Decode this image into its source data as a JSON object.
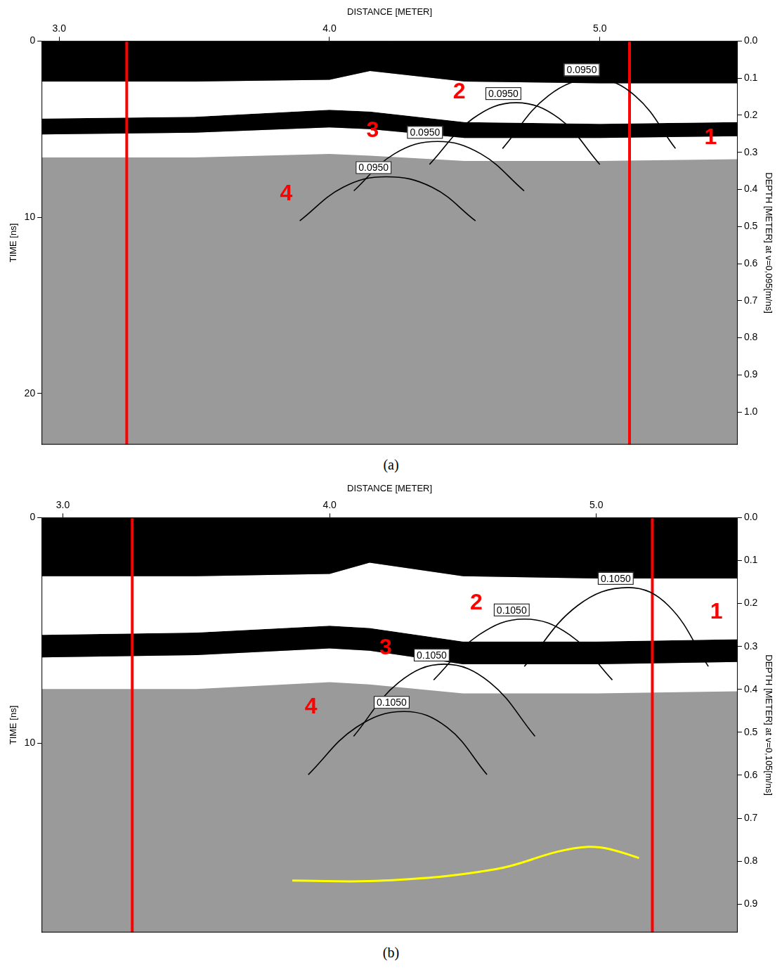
{
  "chart_data": [
    {
      "type": "line",
      "caption": "(a)",
      "x_label": "DISTANCE [METER]",
      "y_label": "TIME [ns]",
      "y2_label": "DEPTH [METER] at v=0,095[m/ns]",
      "xlim": [
        2.935,
        5.51
      ],
      "xticks": [
        {
          "value": 3,
          "label": "3.0"
        },
        {
          "value": 4,
          "label": "4.0"
        },
        {
          "value": 5,
          "label": "5.0"
        }
      ],
      "ylim": [
        0,
        22.9
      ],
      "yticks": [
        0,
        10,
        20
      ],
      "y2lim": [
        0,
        1.088
      ],
      "y2ticks": [
        {
          "value": 0,
          "label": "0.0"
        },
        0.1,
        0.2,
        0.3,
        0.4,
        0.5,
        0.6,
        0.7,
        0.8,
        0.9,
        {
          "value": 1,
          "label": "1.0"
        }
      ],
      "grid": false,
      "bands": [
        {
          "color": "#000000",
          "x": [
            2.935,
            3.5,
            4.0,
            4.15,
            4.5,
            5.0,
            5.51
          ],
          "top": [
            0,
            0,
            0,
            0,
            0,
            0,
            0
          ],
          "bottom": [
            2.3,
            2.3,
            2.2,
            1.7,
            2.3,
            2.4,
            2.4
          ]
        },
        {
          "color": "#ffffff",
          "x": [
            2.935,
            3.5,
            4.0,
            4.15,
            4.5,
            5.0,
            5.51
          ],
          "top": [
            2.3,
            2.3,
            2.2,
            1.7,
            2.3,
            2.4,
            2.4
          ],
          "bottom": [
            4.4,
            4.3,
            3.9,
            4.0,
            4.6,
            4.7,
            4.6
          ]
        },
        {
          "color": "#000000",
          "x": [
            2.935,
            3.5,
            4.0,
            4.15,
            4.5,
            5.0,
            5.51
          ],
          "top": [
            4.4,
            4.3,
            3.9,
            4.0,
            4.6,
            4.7,
            4.6
          ],
          "bottom": [
            5.3,
            5.2,
            4.9,
            5.0,
            5.5,
            5.5,
            5.4
          ]
        },
        {
          "color": "#ffffff",
          "x": [
            2.935,
            3.5,
            4.0,
            4.15,
            4.5,
            5.0,
            5.51
          ],
          "top": [
            5.3,
            5.2,
            4.9,
            5.0,
            5.5,
            5.5,
            5.4
          ],
          "bottom": [
            6.6,
            6.6,
            6.4,
            6.5,
            6.8,
            6.8,
            6.7
          ]
        }
      ],
      "series": [
        {
          "color": "#000000",
          "label": "0.0950",
          "x": [
            4.64,
            4.81,
            4.98,
            5.13,
            5.28
          ],
          "y": [
            6.1,
            3.1,
            2.15,
            3.1,
            6.1
          ]
        },
        {
          "color": "#000000",
          "label": "0.0950",
          "x": [
            4.37,
            4.53,
            4.69,
            4.85,
            5.0
          ],
          "y": [
            7.0,
            4.4,
            3.5,
            4.4,
            7.0
          ]
        },
        {
          "color": "#000000",
          "label": "0.0950",
          "x": [
            4.09,
            4.24,
            4.4,
            4.56,
            4.72
          ],
          "y": [
            8.5,
            6.4,
            5.7,
            6.4,
            8.5
          ]
        },
        {
          "color": "#000000",
          "label": "0.0950",
          "x": [
            3.89,
            4.05,
            4.21,
            4.38,
            4.54
          ],
          "y": [
            10.2,
            8.3,
            7.7,
            8.3,
            10.2
          ]
        }
      ],
      "vlines": [
        {
          "x": 3.25,
          "color": "#ff0000"
        },
        {
          "x": 5.11,
          "color": "#ff0000"
        }
      ],
      "annotations": [
        {
          "text": "1",
          "x": 5.41,
          "y": 5.5,
          "color": "#ff0000"
        },
        {
          "text": "2",
          "x": 4.48,
          "y": 2.9,
          "color": "#ff0000"
        },
        {
          "text": "3",
          "x": 4.16,
          "y": 5.1,
          "color": "#ff0000"
        },
        {
          "text": "4",
          "x": 3.84,
          "y": 8.7,
          "color": "#ff0000"
        }
      ]
    },
    {
      "type": "line",
      "caption": "(b)",
      "x_label": "DISTANCE [METER]",
      "y_label": "TIME [ns]",
      "y2_label": "DEPTH [METER] at v=0,105[m/ns]",
      "xlim": [
        2.92,
        5.53
      ],
      "xticks": [
        {
          "value": 3,
          "label": "3.0"
        },
        {
          "value": 4,
          "label": "4.0"
        },
        {
          "value": 5,
          "label": "5.0"
        }
      ],
      "ylim": [
        0,
        18.4
      ],
      "yticks": [
        0,
        10
      ],
      "y2lim": [
        0,
        0.966
      ],
      "y2ticks": [
        {
          "value": 0,
          "label": "0.0"
        },
        0.1,
        0.2,
        0.3,
        0.4,
        0.5,
        0.6,
        0.7,
        0.8,
        0.9
      ],
      "grid": false,
      "bands": [
        {
          "color": "#000000",
          "x": [
            2.92,
            3.5,
            4.0,
            4.15,
            4.5,
            5.0,
            5.53
          ],
          "top": [
            0,
            0,
            0,
            0,
            0,
            0,
            0
          ],
          "bottom": [
            2.6,
            2.6,
            2.5,
            2.0,
            2.6,
            2.7,
            2.7
          ]
        },
        {
          "color": "#ffffff",
          "x": [
            2.92,
            3.5,
            4.0,
            4.15,
            4.5,
            5.0,
            5.53
          ],
          "top": [
            2.6,
            2.6,
            2.5,
            2.0,
            2.6,
            2.7,
            2.7
          ],
          "bottom": [
            5.2,
            5.1,
            4.8,
            4.9,
            5.5,
            5.5,
            5.4
          ]
        },
        {
          "color": "#000000",
          "x": [
            2.92,
            3.5,
            4.0,
            4.15,
            4.5,
            5.0,
            5.53
          ],
          "top": [
            5.2,
            5.1,
            4.8,
            4.9,
            5.5,
            5.5,
            5.4
          ],
          "bottom": [
            6.2,
            6.1,
            5.8,
            5.9,
            6.5,
            6.5,
            6.4
          ]
        },
        {
          "color": "#ffffff",
          "x": [
            2.92,
            3.5,
            4.0,
            4.15,
            4.5,
            5.0,
            5.53
          ],
          "top": [
            6.2,
            6.1,
            5.8,
            5.9,
            6.5,
            6.5,
            6.4
          ],
          "bottom": [
            7.6,
            7.6,
            7.3,
            7.4,
            7.8,
            7.8,
            7.7
          ]
        }
      ],
      "series": [
        {
          "color": "#000000",
          "label": "0.1050",
          "x": [
            4.73,
            4.93,
            5.12,
            5.27,
            5.42
          ],
          "y": [
            6.6,
            3.9,
            3.1,
            3.9,
            6.6
          ]
        },
        {
          "color": "#000000",
          "label": "0.1050",
          "x": [
            4.39,
            4.56,
            4.73,
            4.9,
            5.06
          ],
          "y": [
            7.2,
            5.2,
            4.5,
            5.2,
            7.2
          ]
        },
        {
          "color": "#000000",
          "label": "0.1050",
          "x": [
            4.09,
            4.26,
            4.43,
            4.6,
            4.77
          ],
          "y": [
            9.7,
            7.3,
            6.5,
            7.3,
            9.7
          ]
        },
        {
          "color": "#000000",
          "label": "0.1050",
          "x": [
            3.92,
            4.1,
            4.28,
            4.44,
            4.59
          ],
          "y": [
            11.4,
            9.3,
            8.6,
            9.3,
            11.4
          ]
        },
        {
          "color": "#ffff00",
          "x": [
            3.86,
            4.2,
            4.62,
            4.86,
            4.97,
            5.05,
            5.16
          ],
          "y": [
            16.1,
            16.1,
            15.6,
            14.8,
            14.6,
            14.7,
            15.1
          ]
        }
      ],
      "vlines": [
        {
          "x": 3.26,
          "color": "#ff0000"
        },
        {
          "x": 5.21,
          "color": "#ff0000"
        }
      ],
      "annotations": [
        {
          "text": "1",
          "x": 5.45,
          "y": 4.2,
          "color": "#ff0000"
        },
        {
          "text": "2",
          "x": 4.55,
          "y": 3.8,
          "color": "#ff0000"
        },
        {
          "text": "3",
          "x": 4.21,
          "y": 5.8,
          "color": "#ff0000"
        },
        {
          "text": "4",
          "x": 3.93,
          "y": 8.4,
          "color": "#ff0000"
        }
      ]
    }
  ]
}
